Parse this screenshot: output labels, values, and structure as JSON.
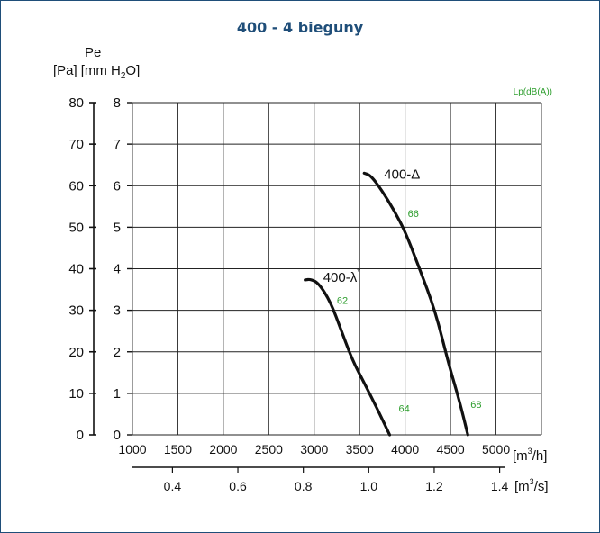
{
  "chart_data": {
    "type": "line",
    "title": "400 - 4 bieguny",
    "y_axis_label": "Pe",
    "y_axis_units_left": "[Pa]",
    "y_axis_units_right_prefix": "[mm H",
    "y_axis_units_right_sub": "2",
    "y_axis_units_right_suffix": "O]",
    "noise_label": "Lp(dB(A))",
    "x_unit_main": "[m",
    "x_unit_main_sup": "3",
    "x_unit_main_suffix": "/h]",
    "x_unit_secondary": "[m",
    "x_unit_secondary_sup": "3",
    "x_unit_secondary_suffix": "/s]",
    "xlim": [
      1000,
      5500
    ],
    "ylim_pa": [
      0,
      80
    ],
    "ylim_mm": [
      0,
      8
    ],
    "x_ticks_m3h": [
      "1000",
      "1500",
      "2000",
      "2500",
      "3000",
      "3500",
      "4000",
      "4500",
      "5000"
    ],
    "x_ticks_m3s": [
      "0.4",
      "0.6",
      "0.8",
      "1.0",
      "1.2",
      "1.4"
    ],
    "y_ticks_pa": [
      "0",
      "10",
      "20",
      "30",
      "40",
      "50",
      "60",
      "70",
      "80"
    ],
    "y_ticks_mm": [
      "0",
      "1",
      "2",
      "3",
      "4",
      "5",
      "6",
      "7",
      "8"
    ],
    "grid": true,
    "colors": {
      "curve": "#111111",
      "noise": "#2e9e2e",
      "title": "#1f4e79",
      "grid": "#222222"
    },
    "series": [
      {
        "name": "400-λ",
        "name_sup": "*",
        "points": [
          [
            2900,
            37.3
          ],
          [
            2960,
            37.5
          ],
          [
            3050,
            36.5
          ],
          [
            3180,
            32.0
          ],
          [
            3300,
            25.0
          ],
          [
            3420,
            18.0
          ],
          [
            3550,
            12.5
          ],
          [
            3700,
            6.0
          ],
          [
            3830,
            0
          ]
        ]
      },
      {
        "name": "400-Δ",
        "points": [
          [
            3550,
            63.0
          ],
          [
            3620,
            62.5
          ],
          [
            3740,
            59.0
          ],
          [
            3880,
            54.0
          ],
          [
            4000,
            49.0
          ],
          [
            4150,
            40.5
          ],
          [
            4330,
            30.0
          ],
          [
            4480,
            17.0
          ],
          [
            4600,
            8.0
          ],
          [
            4690,
            0
          ]
        ]
      }
    ],
    "noise_points": [
      {
        "label": "66",
        "x": 4090,
        "y": 52.5
      },
      {
        "label": "62",
        "x": 3310,
        "y": 31.5
      },
      {
        "label": "68",
        "x": 4780,
        "y": 6.5
      },
      {
        "label": "64",
        "x": 3990,
        "y": 5.5
      }
    ]
  }
}
